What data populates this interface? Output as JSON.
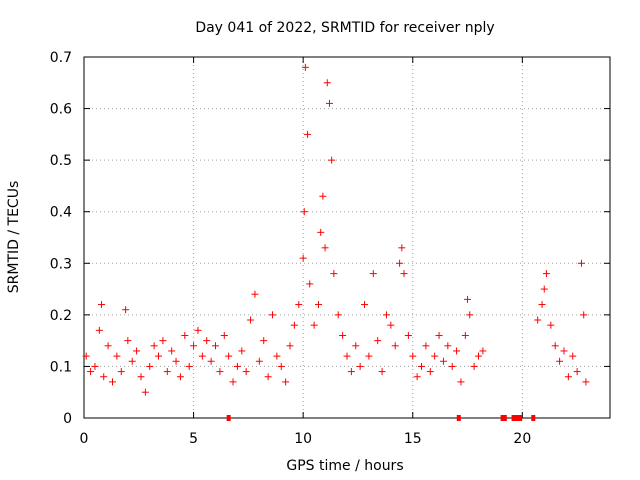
{
  "chart_data": {
    "type": "scatter",
    "title": "Day 041 of 2022, SRMTID for receiver nply",
    "xlabel": "GPS time / hours",
    "ylabel": "SRMTID / TECUs",
    "xlim": [
      0,
      24
    ],
    "ylim": [
      0,
      0.7
    ],
    "xticks": [
      0,
      5,
      10,
      15,
      20
    ],
    "yticks": [
      0,
      0.1,
      0.2,
      0.3,
      0.4,
      0.5,
      0.6,
      0.7
    ],
    "xtick_labels": [
      "0",
      "5",
      "10",
      "15",
      "20"
    ],
    "ytick_labels": [
      "0",
      "0.1",
      "0.2",
      "0.3",
      "0.4",
      "0.5",
      "0.6",
      "0.7"
    ],
    "grid": true,
    "marker": "+",
    "color": "#ff0000",
    "series": [
      {
        "name": "SRMTID",
        "points": [
          [
            0.1,
            0.12
          ],
          [
            0.3,
            0.09
          ],
          [
            0.5,
            0.1
          ],
          [
            0.7,
            0.17
          ],
          [
            0.8,
            0.22
          ],
          [
            0.9,
            0.08
          ],
          [
            1.1,
            0.14
          ],
          [
            1.3,
            0.07
          ],
          [
            1.5,
            0.12
          ],
          [
            1.7,
            0.09
          ],
          [
            1.9,
            0.21
          ],
          [
            2.0,
            0.15
          ],
          [
            2.2,
            0.11
          ],
          [
            2.4,
            0.13
          ],
          [
            2.6,
            0.08
          ],
          [
            2.8,
            0.05
          ],
          [
            3.0,
            0.1
          ],
          [
            3.2,
            0.14
          ],
          [
            3.4,
            0.12
          ],
          [
            3.6,
            0.15
          ],
          [
            3.8,
            0.09
          ],
          [
            4.0,
            0.13
          ],
          [
            4.2,
            0.11
          ],
          [
            4.4,
            0.08
          ],
          [
            4.6,
            0.16
          ],
          [
            4.8,
            0.1
          ],
          [
            5.0,
            0.14
          ],
          [
            5.2,
            0.17
          ],
          [
            5.4,
            0.12
          ],
          [
            5.6,
            0.15
          ],
          [
            5.8,
            0.11
          ],
          [
            6.0,
            0.14
          ],
          [
            6.2,
            0.09
          ],
          [
            6.4,
            0.16
          ],
          [
            6.6,
            0.12
          ],
          [
            6.8,
            0.07
          ],
          [
            7.0,
            0.1
          ],
          [
            7.2,
            0.13
          ],
          [
            7.4,
            0.09
          ],
          [
            7.6,
            0.19
          ],
          [
            7.8,
            0.24
          ],
          [
            8.0,
            0.11
          ],
          [
            8.2,
            0.15
          ],
          [
            8.4,
            0.08
          ],
          [
            8.6,
            0.2
          ],
          [
            8.8,
            0.12
          ],
          [
            9.0,
            0.1
          ],
          [
            9.2,
            0.07
          ],
          [
            9.4,
            0.14
          ],
          [
            9.6,
            0.18
          ],
          [
            9.8,
            0.22
          ],
          [
            10.0,
            0.31
          ],
          [
            10.05,
            0.4
          ],
          [
            10.1,
            0.68
          ],
          [
            10.2,
            0.55
          ],
          [
            10.3,
            0.26
          ],
          [
            10.5,
            0.18
          ],
          [
            10.7,
            0.22
          ],
          [
            10.8,
            0.36
          ],
          [
            10.9,
            0.43
          ],
          [
            11.0,
            0.33
          ],
          [
            11.1,
            0.65
          ],
          [
            11.2,
            0.61
          ],
          [
            11.3,
            0.5
          ],
          [
            11.4,
            0.28
          ],
          [
            11.6,
            0.2
          ],
          [
            11.8,
            0.16
          ],
          [
            12.0,
            0.12
          ],
          [
            12.2,
            0.09
          ],
          [
            12.4,
            0.14
          ],
          [
            12.6,
            0.1
          ],
          [
            12.8,
            0.22
          ],
          [
            13.0,
            0.12
          ],
          [
            13.2,
            0.28
          ],
          [
            13.4,
            0.15
          ],
          [
            13.6,
            0.09
          ],
          [
            13.8,
            0.2
          ],
          [
            14.0,
            0.18
          ],
          [
            14.2,
            0.14
          ],
          [
            14.4,
            0.3
          ],
          [
            14.5,
            0.33
          ],
          [
            14.6,
            0.28
          ],
          [
            14.8,
            0.16
          ],
          [
            15.0,
            0.12
          ],
          [
            15.2,
            0.08
          ],
          [
            15.4,
            0.1
          ],
          [
            15.6,
            0.14
          ],
          [
            15.8,
            0.09
          ],
          [
            16.0,
            0.12
          ],
          [
            16.2,
            0.16
          ],
          [
            16.4,
            0.11
          ],
          [
            16.6,
            0.14
          ],
          [
            16.8,
            0.1
          ],
          [
            17.0,
            0.13
          ],
          [
            17.2,
            0.07
          ],
          [
            17.4,
            0.16
          ],
          [
            17.5,
            0.23
          ],
          [
            17.6,
            0.2
          ],
          [
            17.8,
            0.1
          ],
          [
            18.0,
            0.12
          ],
          [
            18.2,
            0.13
          ],
          [
            20.7,
            0.19
          ],
          [
            20.9,
            0.22
          ],
          [
            21.0,
            0.25
          ],
          [
            21.1,
            0.28
          ],
          [
            21.3,
            0.18
          ],
          [
            21.5,
            0.14
          ],
          [
            21.7,
            0.11
          ],
          [
            21.9,
            0.13
          ],
          [
            22.1,
            0.08
          ],
          [
            22.3,
            0.12
          ],
          [
            22.5,
            0.09
          ],
          [
            22.7,
            0.3
          ],
          [
            22.8,
            0.2
          ],
          [
            22.9,
            0.07
          ]
        ]
      }
    ],
    "gap_markers_at_zero": [
      6.6,
      17.1,
      19.1,
      19.2,
      19.6,
      19.7,
      19.8,
      19.9,
      20.5
    ]
  }
}
